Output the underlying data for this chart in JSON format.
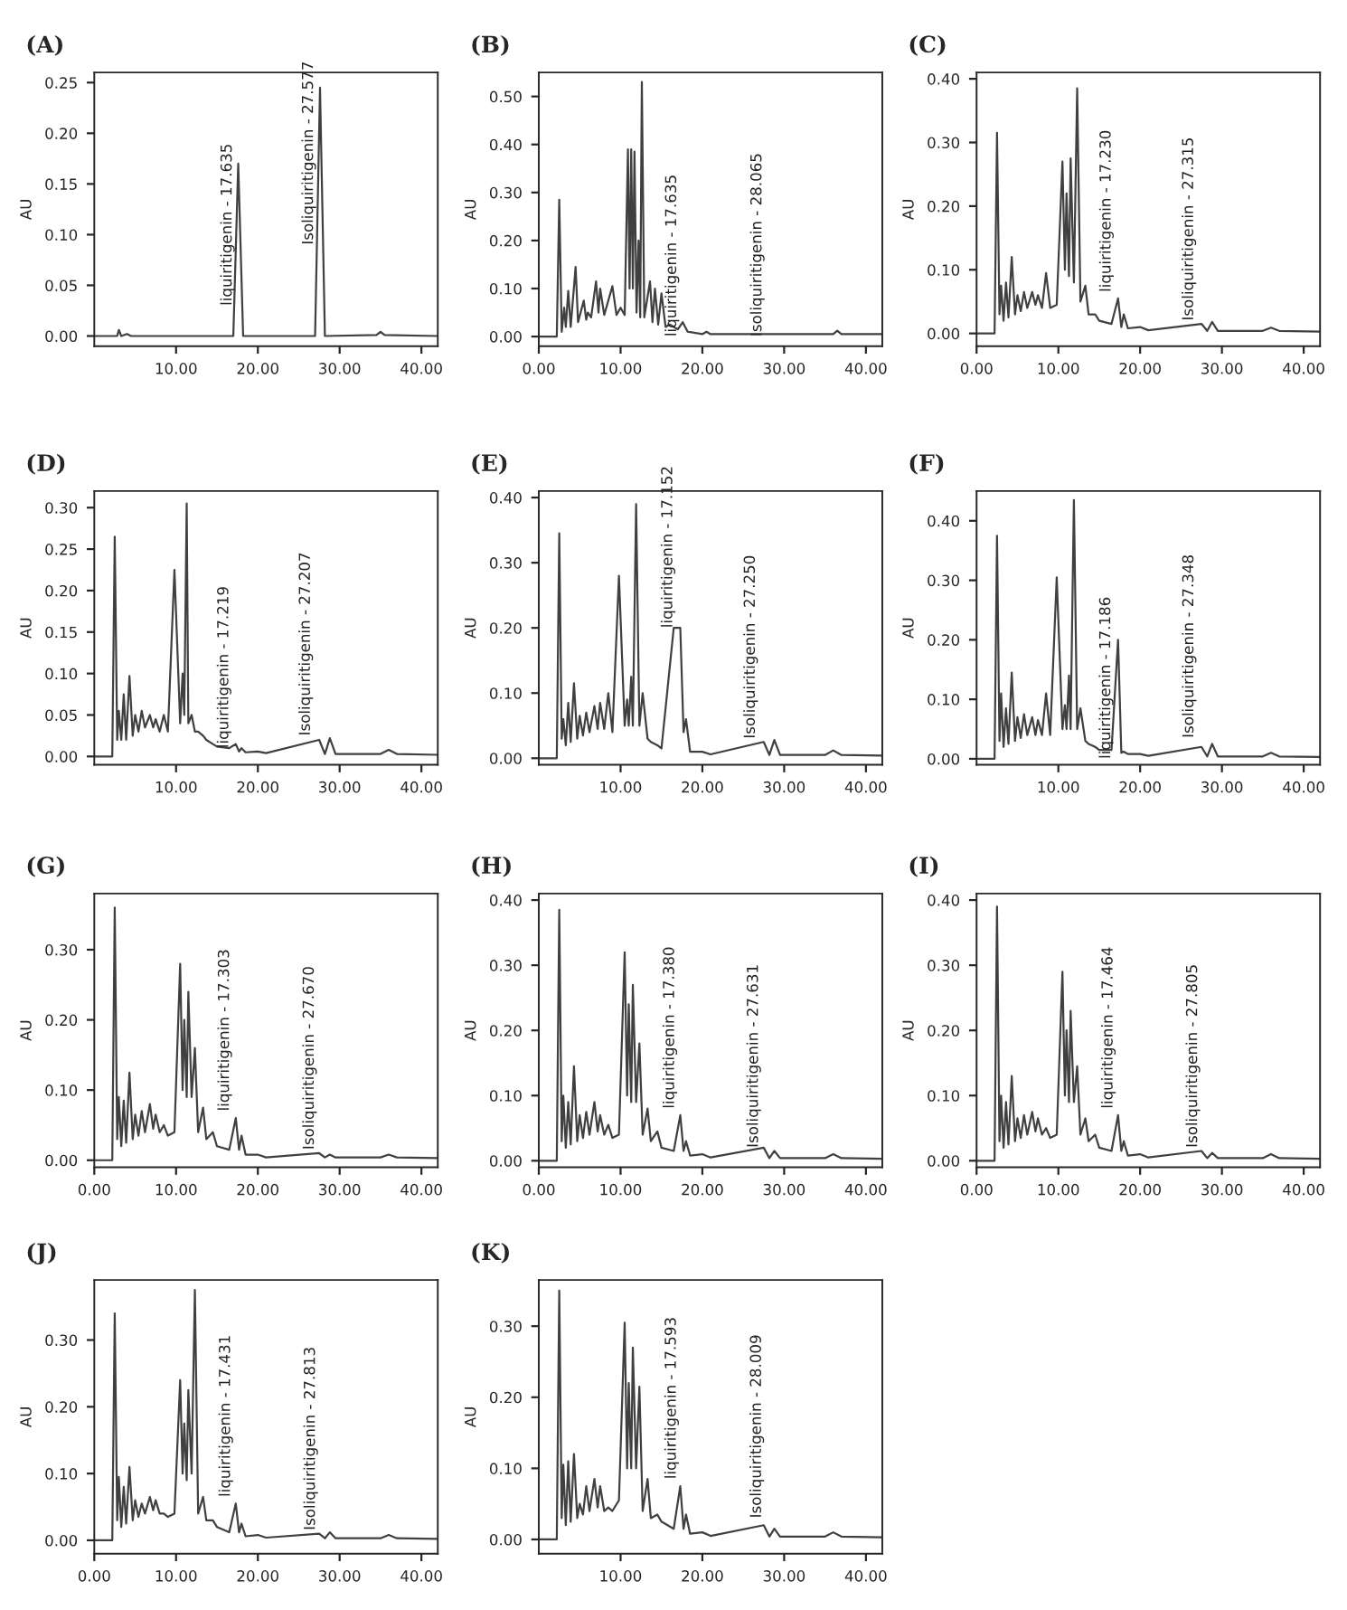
{
  "chart_data": [
    {
      "type": "line",
      "title": "(A)",
      "ylabel": "AU",
      "xlim": [
        0,
        42
      ],
      "ylim": [
        -0.01,
        0.26
      ],
      "xticks": [
        {
          "value": 10,
          "label": "10.00"
        },
        {
          "value": 20,
          "label": "20.00"
        },
        {
          "value": 30,
          "label": "30.00"
        },
        {
          "value": 40,
          "label": "40.00"
        }
      ],
      "yticks": [
        {
          "value": 0,
          "label": "0.00"
        },
        {
          "value": 0.05,
          "label": "0.05"
        },
        {
          "value": 0.1,
          "label": "0.10"
        },
        {
          "value": 0.15,
          "label": "0.15"
        },
        {
          "value": 0.2,
          "label": "0.20"
        },
        {
          "value": 0.25,
          "label": "0.25"
        }
      ],
      "series": [
        {
          "color": "#404040",
          "x": [
            0,
            2.8,
            3.0,
            3.3,
            4,
            4.5,
            17.0,
            17.6,
            18.2,
            27.0,
            27.6,
            28.2,
            34.5,
            35,
            35.5,
            42
          ],
          "values": [
            0,
            0,
            0.006,
            0,
            0.002,
            0,
            0,
            0.17,
            0,
            0,
            0.245,
            0,
            0.001,
            0.004,
            0.001,
            0
          ]
        }
      ],
      "annotations": [
        {
          "text": "liquiritigenin - 17.635",
          "x": 17.635,
          "y": 0.03
        },
        {
          "text": "Isoliquiritigenin - 27.577",
          "x": 27.577,
          "y": 0.09
        }
      ]
    },
    {
      "type": "line",
      "title": "(B)",
      "ylabel": "AU",
      "xlim": [
        0,
        42
      ],
      "ylim": [
        -0.02,
        0.55
      ],
      "xticks": [
        {
          "value": 0,
          "label": "0.00"
        },
        {
          "value": 10,
          "label": "10.00"
        },
        {
          "value": 20,
          "label": "20.00"
        },
        {
          "value": 30,
          "label": "30.00"
        },
        {
          "value": 40,
          "label": "40.00"
        }
      ],
      "yticks": [
        {
          "value": 0,
          "label": "0.00"
        },
        {
          "value": 0.1,
          "label": "0.10"
        },
        {
          "value": 0.2,
          "label": "0.20"
        },
        {
          "value": 0.3,
          "label": "0.30"
        },
        {
          "value": 0.4,
          "label": "0.40"
        },
        {
          "value": 0.5,
          "label": "0.50"
        }
      ],
      "series": [
        {
          "color": "#404040",
          "x": [
            0,
            2.2,
            2.5,
            2.8,
            3.1,
            3.3,
            3.6,
            3.9,
            4.5,
            4.8,
            5.5,
            5.8,
            6,
            6.4,
            7,
            7.3,
            7.5,
            8,
            9,
            9.5,
            10,
            10.5,
            10.9,
            11.1,
            11.3,
            11.5,
            11.7,
            11.95,
            12.2,
            12.4,
            12.6,
            12.9,
            13.6,
            13.9,
            14.2,
            14.6,
            15,
            15.5,
            16,
            17,
            17.6,
            18.2,
            20,
            20.5,
            21,
            36,
            36.5,
            37,
            42
          ],
          "values": [
            0,
            0,
            0.285,
            0.01,
            0.06,
            0.02,
            0.095,
            0.02,
            0.145,
            0.03,
            0.075,
            0.035,
            0.05,
            0.04,
            0.115,
            0.05,
            0.1,
            0.045,
            0.105,
            0.045,
            0.06,
            0.045,
            0.39,
            0.1,
            0.39,
            0.1,
            0.385,
            0.05,
            0.2,
            0.04,
            0.53,
            0.04,
            0.115,
            0.03,
            0.1,
            0.025,
            0.09,
            0.02,
            0.025,
            0.015,
            0.03,
            0.01,
            0.005,
            0.01,
            0.005,
            0.005,
            0.012,
            0.005,
            0.005
          ]
        }
      ],
      "annotations": [
        {
          "text": "liquiritigenin - 17.635",
          "x": 17.635,
          "y": 0.0
        },
        {
          "text": "Isoliquiritigenin - 28.065",
          "x": 28.065,
          "y": 0.0
        }
      ]
    },
    {
      "type": "line",
      "title": "(C)",
      "ylabel": "AU",
      "xlim": [
        0,
        42
      ],
      "ylim": [
        -0.02,
        0.41
      ],
      "xticks": [
        {
          "value": 0,
          "label": "0.00"
        },
        {
          "value": 10,
          "label": "10.00"
        },
        {
          "value": 20,
          "label": "20.00"
        },
        {
          "value": 30,
          "label": "30.00"
        },
        {
          "value": 40,
          "label": "40.00"
        }
      ],
      "yticks": [
        {
          "value": 0,
          "label": "0.00"
        },
        {
          "value": 0.1,
          "label": "0.10"
        },
        {
          "value": 0.2,
          "label": "0.20"
        },
        {
          "value": 0.3,
          "label": "0.30"
        },
        {
          "value": 0.4,
          "label": "0.40"
        }
      ],
      "series": [
        {
          "color": "#404040",
          "x": [
            0,
            2.2,
            2.5,
            2.8,
            3.0,
            3.3,
            3.6,
            3.9,
            4.3,
            4.7,
            5.0,
            5.4,
            5.8,
            6.2,
            6.8,
            7.2,
            7.5,
            8.0,
            8.5,
            9.0,
            9.8,
            10.5,
            10.8,
            11.0,
            11.3,
            11.5,
            11.9,
            12.3,
            12.7,
            13.3,
            13.7,
            14.5,
            15.0,
            16.5,
            17.3,
            17.7,
            18.0,
            18.5,
            20.0,
            21.0,
            27.5,
            28.2,
            28.8,
            29.5,
            35.0,
            36.0,
            37.0,
            42.0
          ],
          "values": [
            0,
            0,
            0.315,
            0.03,
            0.075,
            0.02,
            0.08,
            0.025,
            0.12,
            0.03,
            0.06,
            0.035,
            0.065,
            0.04,
            0.065,
            0.045,
            0.06,
            0.04,
            0.095,
            0.04,
            0.045,
            0.27,
            0.1,
            0.22,
            0.09,
            0.275,
            0.08,
            0.385,
            0.05,
            0.075,
            0.03,
            0.03,
            0.02,
            0.015,
            0.055,
            0.01,
            0.03,
            0.008,
            0.01,
            0.005,
            0.015,
            0.004,
            0.018,
            0.004,
            0.004,
            0.009,
            0.004,
            0.003
          ]
        }
      ],
      "annotations": [
        {
          "text": "liquiritigenin - 17.230",
          "x": 17.23,
          "y": 0.065
        },
        {
          "text": "Isoliquiritigenin - 27.315",
          "x": 27.315,
          "y": 0.02
        }
      ]
    },
    {
      "type": "line",
      "title": "(D)",
      "ylabel": "AU",
      "xlim": [
        0,
        42
      ],
      "ylim": [
        -0.01,
        0.32
      ],
      "xticks": [
        {
          "value": 10,
          "label": "10.00"
        },
        {
          "value": 20,
          "label": "20.00"
        },
        {
          "value": 30,
          "label": "30.00"
        },
        {
          "value": 40,
          "label": "40.00"
        }
      ],
      "yticks": [
        {
          "value": 0,
          "label": "0.00"
        },
        {
          "value": 0.05,
          "label": "0.05"
        },
        {
          "value": 0.1,
          "label": "0.10"
        },
        {
          "value": 0.15,
          "label": "0.15"
        },
        {
          "value": 0.2,
          "label": "0.20"
        },
        {
          "value": 0.25,
          "label": "0.25"
        },
        {
          "value": 0.3,
          "label": "0.30"
        }
      ],
      "series": [
        {
          "color": "#404040",
          "x": [
            0,
            2.2,
            2.5,
            2.8,
            3.0,
            3.3,
            3.6,
            3.9,
            4.3,
            4.7,
            5.0,
            5.4,
            5.8,
            6.2,
            6.8,
            7.2,
            7.5,
            8.0,
            8.5,
            9.0,
            9.8,
            10.5,
            10.8,
            11.0,
            11.3,
            11.5,
            11.9,
            12.3,
            12.7,
            13.3,
            13.7,
            14.5,
            15.0,
            16.5,
            17.3,
            17.7,
            18.0,
            18.5,
            20.0,
            21.0,
            27.5,
            28.2,
            28.8,
            29.5,
            35.0,
            36.0,
            37.0,
            42.0
          ],
          "values": [
            0,
            0,
            0.265,
            0.02,
            0.055,
            0.02,
            0.075,
            0.02,
            0.097,
            0.025,
            0.05,
            0.03,
            0.055,
            0.035,
            0.05,
            0.035,
            0.045,
            0.03,
            0.05,
            0.03,
            0.225,
            0.04,
            0.1,
            0.05,
            0.305,
            0.04,
            0.05,
            0.03,
            0.03,
            0.025,
            0.02,
            0.015,
            0.012,
            0.01,
            0.015,
            0.006,
            0.01,
            0.005,
            0.006,
            0.004,
            0.02,
            0.003,
            0.022,
            0.003,
            0.003,
            0.008,
            0.003,
            0.002
          ]
        }
      ],
      "annotations": [
        {
          "text": "liquiritigenin - 17.219",
          "x": 17.219,
          "y": 0.01
        },
        {
          "text": "Isoliquiritigenin - 27.207",
          "x": 27.207,
          "y": 0.025
        }
      ]
    },
    {
      "type": "line",
      "title": "(E)",
      "ylabel": "AU",
      "xlim": [
        0,
        42
      ],
      "ylim": [
        -0.01,
        0.41
      ],
      "xticks": [
        {
          "value": 10,
          "label": "10.00"
        },
        {
          "value": 20,
          "label": "20.00"
        },
        {
          "value": 30,
          "label": "30.00"
        },
        {
          "value": 40,
          "label": "40.00"
        }
      ],
      "yticks": [
        {
          "value": 0,
          "label": "0.00"
        },
        {
          "value": 0.1,
          "label": "0.10"
        },
        {
          "value": 0.2,
          "label": "0.20"
        },
        {
          "value": 0.3,
          "label": "0.30"
        },
        {
          "value": 0.4,
          "label": "0.40"
        }
      ],
      "series": [
        {
          "color": "#404040",
          "x": [
            0,
            2.2,
            2.5,
            2.8,
            3.0,
            3.3,
            3.6,
            3.9,
            4.3,
            4.7,
            5.0,
            5.4,
            5.8,
            6.2,
            6.8,
            7.2,
            7.5,
            8.0,
            8.5,
            9.0,
            9.8,
            10.5,
            10.8,
            11.0,
            11.3,
            11.5,
            11.9,
            12.3,
            12.7,
            13.3,
            13.7,
            14.5,
            15.0,
            16.5,
            17.3,
            17.7,
            18.0,
            18.5,
            20.0,
            21.0,
            27.5,
            28.2,
            28.8,
            29.5,
            35.0,
            36.0,
            37.0,
            42.0
          ],
          "values": [
            0,
            0,
            0.345,
            0.03,
            0.06,
            0.02,
            0.085,
            0.025,
            0.115,
            0.03,
            0.065,
            0.035,
            0.07,
            0.04,
            0.08,
            0.045,
            0.085,
            0.045,
            0.1,
            0.04,
            0.28,
            0.05,
            0.09,
            0.05,
            0.125,
            0.05,
            0.39,
            0.05,
            0.1,
            0.03,
            0.025,
            0.02,
            0.015,
            0.2,
            0.2,
            0.04,
            0.06,
            0.01,
            0.01,
            0.006,
            0.025,
            0.005,
            0.028,
            0.005,
            0.005,
            0.012,
            0.005,
            0.004
          ]
        }
      ],
      "annotations": [
        {
          "text": "liquiritigenin - 17.152",
          "x": 17.152,
          "y": 0.2
        },
        {
          "text": "Isoliquiritigenin - 27.250",
          "x": 27.25,
          "y": 0.03
        }
      ]
    },
    {
      "type": "line",
      "title": "(F)",
      "ylabel": "AU",
      "xlim": [
        0,
        42
      ],
      "ylim": [
        -0.01,
        0.45
      ],
      "xticks": [
        {
          "value": 10,
          "label": "10.00"
        },
        {
          "value": 20,
          "label": "20.00"
        },
        {
          "value": 30,
          "label": "30.00"
        },
        {
          "value": 40,
          "label": "40.00"
        }
      ],
      "yticks": [
        {
          "value": 0,
          "label": "0.00"
        },
        {
          "value": 0.1,
          "label": "0.10"
        },
        {
          "value": 0.2,
          "label": "0.20"
        },
        {
          "value": 0.3,
          "label": "0.30"
        },
        {
          "value": 0.4,
          "label": "0.40"
        }
      ],
      "series": [
        {
          "color": "#404040",
          "x": [
            0,
            2.2,
            2.5,
            2.8,
            3.0,
            3.3,
            3.6,
            3.9,
            4.3,
            4.7,
            5.0,
            5.4,
            5.8,
            6.2,
            6.8,
            7.2,
            7.5,
            8.0,
            8.5,
            9.0,
            9.8,
            10.5,
            10.8,
            11.0,
            11.3,
            11.5,
            11.9,
            12.3,
            12.7,
            13.3,
            13.7,
            14.5,
            15.0,
            16.5,
            17.3,
            17.7,
            18.0,
            18.5,
            20.0,
            21.0,
            27.5,
            28.2,
            28.8,
            29.5,
            35.0,
            36.0,
            37.0,
            42.0
          ],
          "values": [
            0,
            0,
            0.375,
            0.03,
            0.11,
            0.02,
            0.085,
            0.025,
            0.145,
            0.03,
            0.07,
            0.035,
            0.075,
            0.04,
            0.07,
            0.04,
            0.065,
            0.04,
            0.11,
            0.04,
            0.305,
            0.05,
            0.09,
            0.05,
            0.14,
            0.05,
            0.435,
            0.05,
            0.085,
            0.03,
            0.025,
            0.02,
            0.015,
            0.015,
            0.2,
            0.01,
            0.012,
            0.008,
            0.008,
            0.005,
            0.02,
            0.004,
            0.025,
            0.004,
            0.004,
            0.01,
            0.004,
            0.003
          ]
        }
      ],
      "annotations": [
        {
          "text": "liquiritigenin - 17.186",
          "x": 17.186,
          "y": 0.0
        },
        {
          "text": "Isoliquiritigenin - 27.348",
          "x": 27.348,
          "y": 0.035
        }
      ]
    },
    {
      "type": "line",
      "title": "(G)",
      "ylabel": "AU",
      "xlim": [
        0,
        42
      ],
      "ylim": [
        -0.01,
        0.38
      ],
      "xticks": [
        {
          "value": 0,
          "label": "0.00"
        },
        {
          "value": 10,
          "label": "10.00"
        },
        {
          "value": 20,
          "label": "20.00"
        },
        {
          "value": 30,
          "label": "30.00"
        },
        {
          "value": 40,
          "label": "40.00"
        }
      ],
      "yticks": [
        {
          "value": 0,
          "label": "0.00"
        },
        {
          "value": 0.1,
          "label": "0.10"
        },
        {
          "value": 0.2,
          "label": "0.20"
        },
        {
          "value": 0.3,
          "label": "0.30"
        }
      ],
      "series": [
        {
          "color": "#404040",
          "x": [
            0,
            2.2,
            2.5,
            2.8,
            3.0,
            3.3,
            3.6,
            3.9,
            4.3,
            4.7,
            5.0,
            5.4,
            5.8,
            6.2,
            6.8,
            7.2,
            7.5,
            8.0,
            8.5,
            9.0,
            9.8,
            10.5,
            10.8,
            11.0,
            11.3,
            11.5,
            11.9,
            12.3,
            12.7,
            13.3,
            13.7,
            14.5,
            15.0,
            16.5,
            17.3,
            17.7,
            18.0,
            18.5,
            20.0,
            21.0,
            27.5,
            28.2,
            28.8,
            29.5,
            35.0,
            36.0,
            37.0,
            42.0
          ],
          "values": [
            0,
            0,
            0.36,
            0.03,
            0.09,
            0.02,
            0.085,
            0.025,
            0.125,
            0.03,
            0.065,
            0.035,
            0.07,
            0.04,
            0.08,
            0.045,
            0.065,
            0.04,
            0.05,
            0.035,
            0.04,
            0.28,
            0.1,
            0.2,
            0.09,
            0.24,
            0.09,
            0.16,
            0.04,
            0.075,
            0.03,
            0.04,
            0.02,
            0.015,
            0.06,
            0.015,
            0.035,
            0.008,
            0.008,
            0.004,
            0.01,
            0.004,
            0.008,
            0.004,
            0.004,
            0.008,
            0.004,
            0.003
          ]
        }
      ],
      "annotations": [
        {
          "text": "liquiritigenin - 17.303",
          "x": 17.303,
          "y": 0.07
        },
        {
          "text": "Isoliquiritigenin - 27.670",
          "x": 27.67,
          "y": 0.015
        }
      ]
    },
    {
      "type": "line",
      "title": "(H)",
      "ylabel": "AU",
      "xlim": [
        0,
        42
      ],
      "ylim": [
        -0.01,
        0.41
      ],
      "xticks": [
        {
          "value": 0,
          "label": "0.00"
        },
        {
          "value": 10,
          "label": "10.00"
        },
        {
          "value": 20,
          "label": "20.00"
        },
        {
          "value": 30,
          "label": "30.00"
        },
        {
          "value": 40,
          "label": "40.00"
        }
      ],
      "yticks": [
        {
          "value": 0,
          "label": "0.00"
        },
        {
          "value": 0.1,
          "label": "0.10"
        },
        {
          "value": 0.2,
          "label": "0.20"
        },
        {
          "value": 0.3,
          "label": "0.30"
        },
        {
          "value": 0.4,
          "label": "0.40"
        }
      ],
      "series": [
        {
          "color": "#404040",
          "x": [
            0,
            2.2,
            2.5,
            2.8,
            3.0,
            3.3,
            3.6,
            3.9,
            4.3,
            4.7,
            5.0,
            5.4,
            5.8,
            6.2,
            6.8,
            7.2,
            7.5,
            8.0,
            8.5,
            9.0,
            9.8,
            10.5,
            10.8,
            11.0,
            11.3,
            11.5,
            11.9,
            12.3,
            12.7,
            13.3,
            13.7,
            14.5,
            15.0,
            16.5,
            17.3,
            17.7,
            18.0,
            18.5,
            20.0,
            21.0,
            27.5,
            28.2,
            28.8,
            29.5,
            35.0,
            36.0,
            37.0,
            42.0
          ],
          "values": [
            0,
            0,
            0.385,
            0.03,
            0.1,
            0.02,
            0.09,
            0.025,
            0.145,
            0.03,
            0.07,
            0.035,
            0.075,
            0.04,
            0.09,
            0.045,
            0.07,
            0.04,
            0.055,
            0.035,
            0.04,
            0.32,
            0.1,
            0.24,
            0.09,
            0.27,
            0.09,
            0.18,
            0.04,
            0.08,
            0.03,
            0.045,
            0.02,
            0.015,
            0.07,
            0.015,
            0.03,
            0.008,
            0.01,
            0.005,
            0.02,
            0.004,
            0.015,
            0.004,
            0.004,
            0.01,
            0.004,
            0.003
          ]
        }
      ],
      "annotations": [
        {
          "text": "liquiritigenin - 17.380",
          "x": 17.38,
          "y": 0.08
        },
        {
          "text": "Isoliquiritigenin - 27.631",
          "x": 27.631,
          "y": 0.02
        }
      ]
    },
    {
      "type": "line",
      "title": "(I)",
      "ylabel": "AU",
      "xlim": [
        0,
        42
      ],
      "ylim": [
        -0.01,
        0.41
      ],
      "xticks": [
        {
          "value": 0,
          "label": "0.00"
        },
        {
          "value": 10,
          "label": "10.00"
        },
        {
          "value": 20,
          "label": "20.00"
        },
        {
          "value": 30,
          "label": "30.00"
        },
        {
          "value": 40,
          "label": "40.00"
        }
      ],
      "yticks": [
        {
          "value": 0,
          "label": "0.00"
        },
        {
          "value": 0.1,
          "label": "0.10"
        },
        {
          "value": 0.2,
          "label": "0.20"
        },
        {
          "value": 0.3,
          "label": "0.30"
        },
        {
          "value": 0.4,
          "label": "0.40"
        }
      ],
      "series": [
        {
          "color": "#404040",
          "x": [
            0,
            2.2,
            2.5,
            2.8,
            3.0,
            3.3,
            3.6,
            3.9,
            4.3,
            4.7,
            5.0,
            5.4,
            5.8,
            6.2,
            6.8,
            7.2,
            7.5,
            8.0,
            8.5,
            9.0,
            9.8,
            10.5,
            10.8,
            11.0,
            11.3,
            11.5,
            11.9,
            12.3,
            12.7,
            13.3,
            13.7,
            14.5,
            15.0,
            16.5,
            17.3,
            17.7,
            18.0,
            18.5,
            20.0,
            21.0,
            27.5,
            28.2,
            28.8,
            29.5,
            35.0,
            36.0,
            37.0,
            42.0
          ],
          "values": [
            0,
            0,
            0.39,
            0.03,
            0.1,
            0.02,
            0.09,
            0.025,
            0.13,
            0.03,
            0.065,
            0.035,
            0.07,
            0.04,
            0.075,
            0.045,
            0.065,
            0.04,
            0.05,
            0.035,
            0.04,
            0.29,
            0.1,
            0.2,
            0.09,
            0.23,
            0.09,
            0.145,
            0.04,
            0.065,
            0.03,
            0.04,
            0.02,
            0.015,
            0.07,
            0.015,
            0.03,
            0.008,
            0.01,
            0.005,
            0.015,
            0.004,
            0.012,
            0.004,
            0.004,
            0.01,
            0.004,
            0.003
          ]
        }
      ],
      "annotations": [
        {
          "text": "liquiritigenin - 17.464",
          "x": 17.464,
          "y": 0.08
        },
        {
          "text": "Isoliquiritigenin - 27.805",
          "x": 27.805,
          "y": 0.02
        }
      ]
    },
    {
      "type": "line",
      "title": "(J)",
      "ylabel": "AU",
      "xlim": [
        0,
        42
      ],
      "ylim": [
        -0.02,
        0.39
      ],
      "xticks": [
        {
          "value": 0,
          "label": "0.00"
        },
        {
          "value": 10,
          "label": "10.00"
        },
        {
          "value": 20,
          "label": "20.00"
        },
        {
          "value": 30,
          "label": "30.00"
        },
        {
          "value": 40,
          "label": "40.00"
        }
      ],
      "yticks": [
        {
          "value": 0,
          "label": "0.00"
        },
        {
          "value": 0.1,
          "label": "0.10"
        },
        {
          "value": 0.2,
          "label": "0.20"
        },
        {
          "value": 0.3,
          "label": "0.30"
        }
      ],
      "series": [
        {
          "color": "#404040",
          "x": [
            0,
            2.2,
            2.5,
            2.8,
            3.0,
            3.3,
            3.6,
            3.9,
            4.3,
            4.7,
            5.0,
            5.4,
            5.8,
            6.2,
            6.8,
            7.2,
            7.5,
            8.0,
            8.5,
            9.0,
            9.8,
            10.5,
            10.8,
            11.0,
            11.3,
            11.5,
            11.9,
            12.3,
            12.7,
            13.3,
            13.7,
            14.5,
            15.0,
            16.5,
            17.3,
            17.7,
            18.0,
            18.5,
            20.0,
            21.0,
            27.5,
            28.2,
            28.8,
            29.5,
            35.0,
            36.0,
            37.0,
            42.0
          ],
          "values": [
            0,
            0,
            0.34,
            0.03,
            0.095,
            0.02,
            0.08,
            0.025,
            0.11,
            0.03,
            0.06,
            0.035,
            0.055,
            0.04,
            0.065,
            0.045,
            0.06,
            0.04,
            0.04,
            0.035,
            0.04,
            0.24,
            0.1,
            0.175,
            0.09,
            0.225,
            0.1,
            0.375,
            0.04,
            0.065,
            0.03,
            0.03,
            0.02,
            0.012,
            0.055,
            0.012,
            0.025,
            0.006,
            0.008,
            0.004,
            0.01,
            0.003,
            0.012,
            0.003,
            0.003,
            0.008,
            0.003,
            0.002
          ]
        }
      ],
      "annotations": [
        {
          "text": "liquiritigenin - 17.431",
          "x": 17.431,
          "y": 0.065
        },
        {
          "text": "Isoliquiritigenin - 27.813",
          "x": 27.813,
          "y": 0.015
        }
      ]
    },
    {
      "type": "line",
      "title": "(K)",
      "ylabel": "AU",
      "xlim": [
        0,
        42
      ],
      "ylim": [
        -0.02,
        0.365
      ],
      "xticks": [
        {
          "value": 10,
          "label": "10.00"
        },
        {
          "value": 20,
          "label": "20.00"
        },
        {
          "value": 30,
          "label": "30.00"
        },
        {
          "value": 40,
          "label": "40.00"
        }
      ],
      "yticks": [
        {
          "value": 0,
          "label": "0.00"
        },
        {
          "value": 0.1,
          "label": "0.10"
        },
        {
          "value": 0.2,
          "label": "0.20"
        },
        {
          "value": 0.3,
          "label": "0.30"
        }
      ],
      "series": [
        {
          "color": "#404040",
          "x": [
            0,
            2.2,
            2.5,
            2.8,
            3.0,
            3.3,
            3.6,
            3.9,
            4.3,
            4.7,
            5.0,
            5.4,
            5.8,
            6.2,
            6.8,
            7.2,
            7.5,
            8.0,
            8.5,
            9.0,
            9.8,
            10.5,
            10.8,
            11.0,
            11.3,
            11.5,
            11.9,
            12.3,
            12.7,
            13.3,
            13.7,
            14.5,
            15.0,
            16.5,
            17.3,
            17.7,
            18.0,
            18.5,
            20.0,
            21.0,
            27.5,
            28.2,
            28.8,
            29.5,
            35.0,
            36.0,
            37.0,
            42.0
          ],
          "values": [
            0,
            0,
            0.35,
            0.03,
            0.105,
            0.02,
            0.11,
            0.025,
            0.12,
            0.03,
            0.05,
            0.035,
            0.075,
            0.04,
            0.085,
            0.045,
            0.075,
            0.04,
            0.045,
            0.04,
            0.055,
            0.305,
            0.1,
            0.22,
            0.1,
            0.27,
            0.1,
            0.215,
            0.04,
            0.085,
            0.03,
            0.035,
            0.025,
            0.015,
            0.075,
            0.015,
            0.035,
            0.008,
            0.01,
            0.005,
            0.02,
            0.004,
            0.015,
            0.004,
            0.004,
            0.01,
            0.004,
            0.003
          ]
        }
      ],
      "annotations": [
        {
          "text": "liquiritigenin - 17.593",
          "x": 17.593,
          "y": 0.085
        },
        {
          "text": "Isoliquiritigenin - 28.009",
          "x": 28.009,
          "y": 0.03
        }
      ]
    }
  ]
}
